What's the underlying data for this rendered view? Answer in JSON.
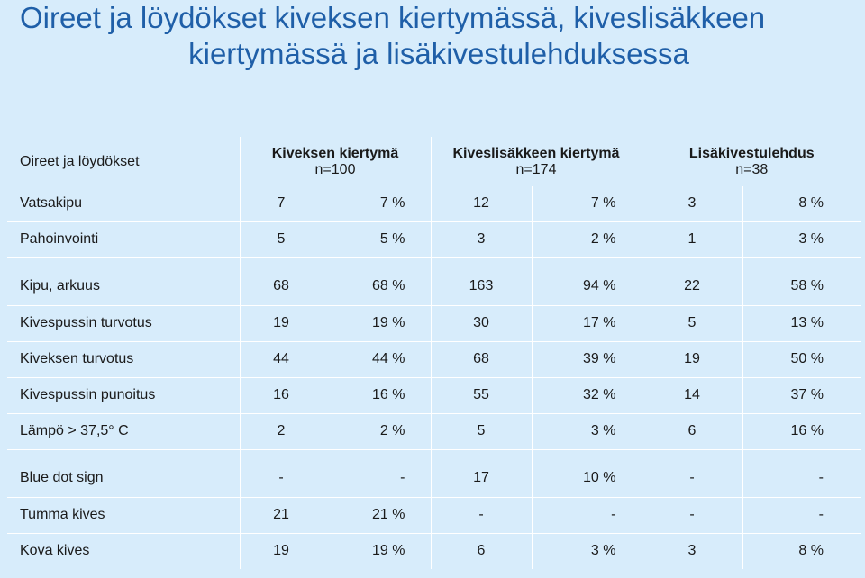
{
  "slide": {
    "title_line1": "Oireet ja löydökset kiveksen kiertymässä, kiveslisäkkeen",
    "title_line2": "kiertymässä ja lisäkivestulehduksessa"
  },
  "table": {
    "header": {
      "label": "Oireet ja löydökset",
      "groups": [
        {
          "name": "Kiveksen kiertymä",
          "n": "n=100"
        },
        {
          "name": "Kiveslisäkkeen kiertymä",
          "n": "n=174"
        },
        {
          "name": "Lisäkivestulehdus",
          "n": "n=38"
        }
      ]
    },
    "rows": [
      {
        "label": "Vatsakipu",
        "cells": [
          "7",
          "7 %",
          "12",
          "7 %",
          "3",
          "8 %"
        ]
      },
      {
        "label": "Pahoinvointi",
        "cells": [
          "5",
          "5 %",
          "3",
          "2 %",
          "1",
          "3 %"
        ]
      },
      {
        "label": "Kipu, arkuus",
        "cells": [
          "68",
          "68 %",
          "163",
          "94 %",
          "22",
          "58 %"
        ]
      },
      {
        "label": "Kivespussin turvotus",
        "cells": [
          "19",
          "19 %",
          "30",
          "17 %",
          "5",
          "13 %"
        ]
      },
      {
        "label": "Kiveksen turvotus",
        "cells": [
          "44",
          "44 %",
          "68",
          "39 %",
          "19",
          "50 %"
        ]
      },
      {
        "label": "Kivespussin punoitus",
        "cells": [
          "16",
          "16 %",
          "55",
          "32 %",
          "14",
          "37 %"
        ]
      },
      {
        "label": "Lämpö > 37,5° C",
        "cells": [
          "2",
          "2 %",
          "5",
          "3 %",
          "6",
          "16 %"
        ]
      },
      {
        "label": " Blue dot sign ",
        "cells": [
          "-",
          "-",
          "17",
          "10 %",
          "-",
          "-"
        ]
      },
      {
        "label": "Tumma kives",
        "cells": [
          "21",
          "21 %",
          "-",
          "-",
          "-",
          "-"
        ]
      },
      {
        "label": " Kova kives",
        "cells": [
          "19",
          "19 %",
          "6",
          "3 %",
          "3",
          "8 %"
        ]
      }
    ]
  }
}
